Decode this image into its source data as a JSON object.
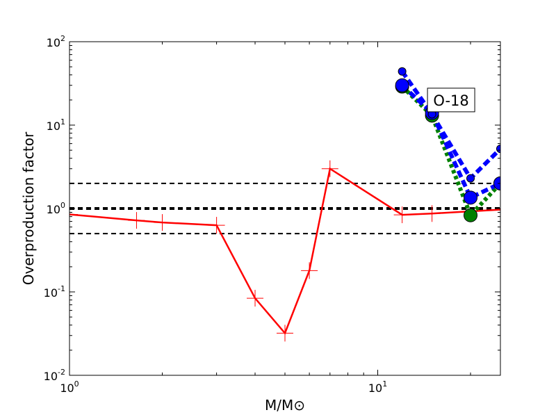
{
  "chart_data": {
    "type": "line",
    "xscale": "log",
    "yscale": "log",
    "xlim": [
      1,
      25
    ],
    "ylim": [
      0.01,
      100
    ],
    "xlabel": "M/M⊙",
    "ylabel": "Overproduction factor",
    "x_ticks": [
      {
        "value": 1,
        "base": "10",
        "exp": "0"
      },
      {
        "value": 10,
        "base": "10",
        "exp": "1"
      }
    ],
    "y_ticks": [
      {
        "value": 0.01,
        "base": "10",
        "exp": "-2"
      },
      {
        "value": 0.1,
        "base": "10",
        "exp": "-1"
      },
      {
        "value": 1,
        "base": "10",
        "exp": "0"
      },
      {
        "value": 10,
        "base": "10",
        "exp": "1"
      },
      {
        "value": 100,
        "base": "10",
        "exp": "2"
      }
    ],
    "reference_lines": [
      {
        "y": 2,
        "style": "dashed",
        "width": "thin"
      },
      {
        "y": 1,
        "style": "dashed",
        "width": "thick"
      },
      {
        "y": 0.5,
        "style": "dashed",
        "width": "thin"
      }
    ],
    "series": [
      {
        "style": "solid",
        "color": "#ff0000",
        "marker": "plus",
        "x": [
          1.0,
          1.65,
          2.0,
          3.0,
          4.0,
          5.0,
          6.0,
          7.0,
          12.0,
          15.0,
          25.0
        ],
        "y": [
          0.85,
          0.72,
          0.68,
          0.63,
          0.084,
          0.032,
          0.18,
          3.0,
          0.84,
          0.87,
          0.97
        ]
      },
      {
        "style": "dotted",
        "color": "#008000",
        "marker": "circle",
        "x": [
          12.0,
          15.0,
          20.0,
          25.0
        ],
        "y": [
          29.0,
          13.0,
          0.83,
          2.0
        ]
      },
      {
        "style": "dashed",
        "color": "#0000ff",
        "marker": "circle",
        "x": [
          12.0,
          15.0,
          20.0,
          25.0
        ],
        "y": [
          30.0,
          14.0,
          1.35,
          2.0
        ]
      },
      {
        "style": "dashed",
        "color": "#0000ff",
        "marker": "small-circle",
        "x": [
          12.0,
          15.0,
          20.0,
          25.0
        ],
        "y": [
          44.0,
          13.5,
          2.3,
          5.2
        ]
      }
    ],
    "annotations": [
      {
        "text": "O-18",
        "x": 17.3,
        "y": 20
      }
    ]
  }
}
